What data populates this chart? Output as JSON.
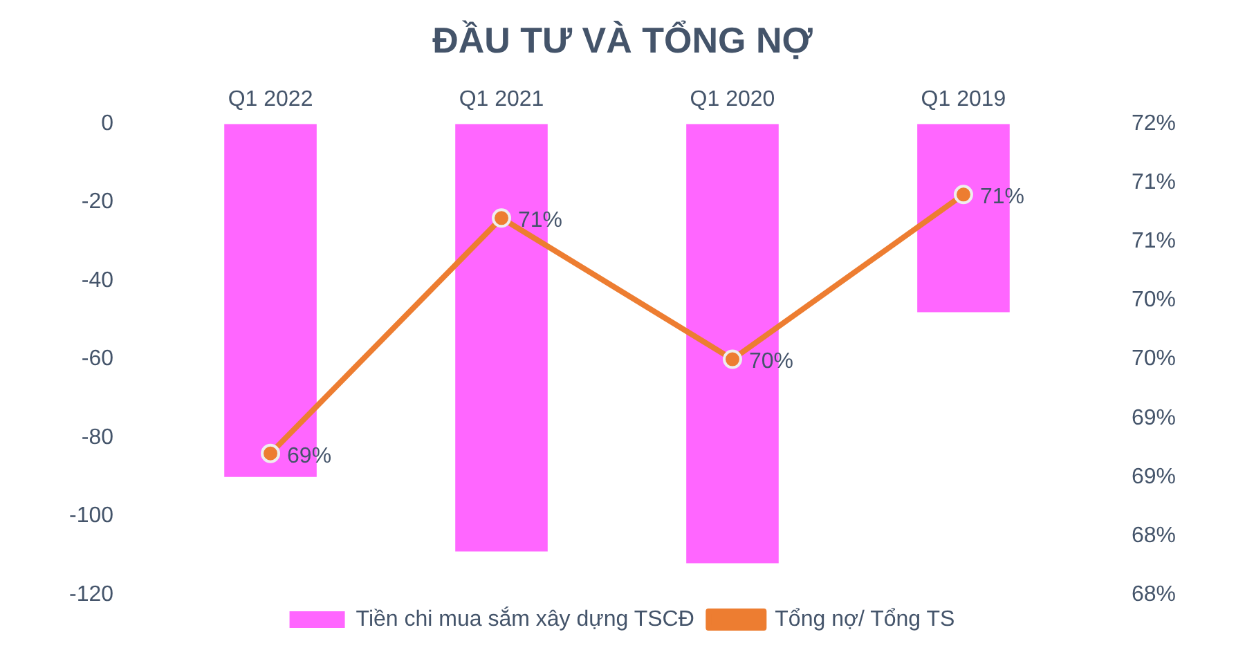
{
  "chart_data": {
    "type": "bar",
    "title": "ĐẦU TƯ VÀ TỔNG NỢ",
    "categories": [
      "Q1 2022",
      "Q1 2021",
      "Q1 2020",
      "Q1 2019"
    ],
    "series": [
      {
        "name": "Tiền chi mua sắm xây dựng TSCĐ",
        "color": "#ff66ff",
        "values": [
          -90,
          -109,
          -112,
          -48
        ]
      },
      {
        "name": "Tổng nợ/ Tổng TS",
        "type": "line",
        "axis": "y2",
        "color": "#ed7d31",
        "values": [
          69.2,
          71.2,
          70.0,
          71.4
        ],
        "value_labels": [
          "69%",
          "71%",
          "70%",
          "71%"
        ]
      }
    ],
    "ylim": [
      -120,
      0
    ],
    "yticks": [
      0,
      -20,
      -40,
      -60,
      -80,
      -100,
      -120
    ],
    "y2lim": [
      68,
      72
    ],
    "y2ticks": [
      {
        "value": 72,
        "label": "72%"
      },
      {
        "value": 71.5,
        "label": "71%"
      },
      {
        "value": 71,
        "label": "71%"
      },
      {
        "value": 70.5,
        "label": "70%"
      },
      {
        "value": 70,
        "label": "70%"
      },
      {
        "value": 69.5,
        "label": "69%"
      },
      {
        "value": 69,
        "label": "69%"
      },
      {
        "value": 68.5,
        "label": "68%"
      },
      {
        "value": 68,
        "label": "68%"
      }
    ],
    "marker": "circle",
    "grid": false,
    "legend": "bottom"
  }
}
